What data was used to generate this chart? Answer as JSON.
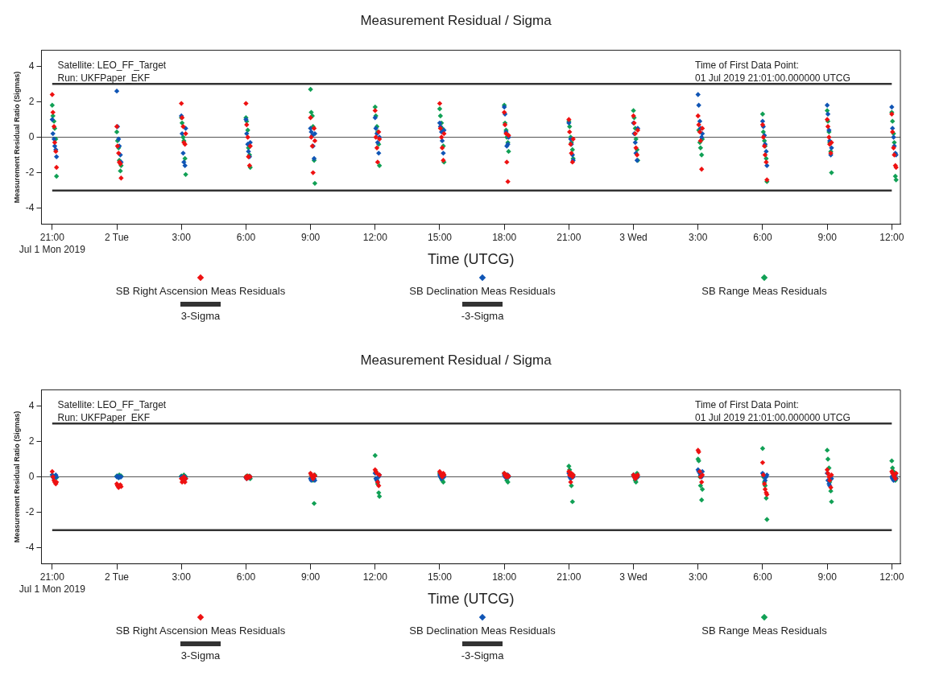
{
  "chart_data": [
    {
      "type": "scatter",
      "title": "Measurement Residual / Sigma",
      "xlabel": "Time (UTCG)",
      "ylabel": "Measurement Residual Ratio (Sigmas)",
      "annotations": [
        "Satellite: LEO_FF_Target",
        "Run: UKFPaper_EKF",
        "Time of First Data Point:",
        "01 Jul 2019 21:01:00.000000 UTCG"
      ],
      "x": [
        "2019-07-01T21:00",
        "2019-07-01T21:02",
        "2019-07-01T21:05",
        "2019-07-01T21:07",
        "2019-07-01T21:10",
        "2019-07-01T21:12",
        "2019-07-02T00:00",
        "2019-07-02T00:02",
        "2019-07-02T00:05",
        "2019-07-02T00:07",
        "2019-07-02T00:10",
        "2019-07-02T00:12",
        "2019-07-02T03:00",
        "2019-07-02T03:02",
        "2019-07-02T03:05",
        "2019-07-02T03:07",
        "2019-07-02T03:10",
        "2019-07-02T03:12",
        "2019-07-02T06:00",
        "2019-07-02T06:02",
        "2019-07-02T06:05",
        "2019-07-02T06:07",
        "2019-07-02T06:10",
        "2019-07-02T06:12",
        "2019-07-02T09:00",
        "2019-07-02T09:02",
        "2019-07-02T09:05",
        "2019-07-02T09:07",
        "2019-07-02T09:10",
        "2019-07-02T09:12",
        "2019-07-02T12:00",
        "2019-07-02T12:02",
        "2019-07-02T12:05",
        "2019-07-02T12:07",
        "2019-07-02T12:10",
        "2019-07-02T12:12",
        "2019-07-02T15:00",
        "2019-07-02T15:02",
        "2019-07-02T15:05",
        "2019-07-02T15:07",
        "2019-07-02T15:10",
        "2019-07-02T15:12",
        "2019-07-02T18:00",
        "2019-07-02T18:02",
        "2019-07-02T18:05",
        "2019-07-02T18:07",
        "2019-07-02T18:10",
        "2019-07-02T18:12",
        "2019-07-02T21:00",
        "2019-07-02T21:02",
        "2019-07-02T21:05",
        "2019-07-02T21:07",
        "2019-07-02T21:10",
        "2019-07-02T21:12",
        "2019-07-03T00:00",
        "2019-07-03T00:02",
        "2019-07-03T00:05",
        "2019-07-03T00:07",
        "2019-07-03T00:10",
        "2019-07-03T00:12",
        "2019-07-03T03:00",
        "2019-07-03T03:02",
        "2019-07-03T03:05",
        "2019-07-03T03:07",
        "2019-07-03T03:10",
        "2019-07-03T03:12",
        "2019-07-03T06:00",
        "2019-07-03T06:02",
        "2019-07-03T06:05",
        "2019-07-03T06:07",
        "2019-07-03T06:10",
        "2019-07-03T06:12",
        "2019-07-03T09:00",
        "2019-07-03T09:02",
        "2019-07-03T09:05",
        "2019-07-03T09:07",
        "2019-07-03T09:10",
        "2019-07-03T09:12",
        "2019-07-03T12:00",
        "2019-07-03T12:02",
        "2019-07-03T12:05",
        "2019-07-03T12:07",
        "2019-07-03T12:10",
        "2019-07-03T12:12"
      ],
      "series": [
        {
          "name": "SB Right Ascension Meas Residuals",
          "color": "#ee1111",
          "values": [
            2.4,
            1.4,
            0.6,
            -0.3,
            -0.8,
            -1.7,
            0.6,
            -0.5,
            -0.9,
            -1.4,
            -1.5,
            -2.3,
            1.9,
            1.1,
            0.6,
            -0.3,
            -0.4,
            0.2,
            1.9,
            0.7,
            0.0,
            -1.1,
            -1.6,
            -0.5,
            1.1,
            0.0,
            -0.5,
            -2.0,
            0.5,
            -0.2,
            1.5,
            0.0,
            -0.6,
            -1.4,
            0.3,
            -0.1,
            1.9,
            0.5,
            0.0,
            -0.6,
            -1.3,
            0.2,
            1.4,
            0.7,
            0.2,
            -1.4,
            -2.5,
            0.1,
            1.0,
            0.3,
            -0.4,
            -0.9,
            -1.4,
            -0.1,
            1.2,
            0.8,
            0.2,
            -0.6,
            -1.0,
            0.4,
            1.2,
            0.7,
            0.3,
            -0.2,
            -1.8,
            0.5,
            0.7,
            0.0,
            -0.5,
            -1.0,
            -1.4,
            -2.4,
            1.0,
            0.6,
            0.0,
            -0.4,
            -0.9,
            -0.3,
            1.3,
            0.3,
            -0.6,
            -1.0,
            -1.6,
            -1.7
          ]
        },
        {
          "name": "SB Declination Meas Residuals",
          "color": "#1055b5",
          "values": [
            1.0,
            0.2,
            -0.1,
            -0.5,
            -0.7,
            -1.1,
            2.6,
            0.6,
            -0.1,
            -0.5,
            -1.0,
            -1.4,
            1.2,
            0.2,
            -0.9,
            -1.4,
            -1.6,
            0.5,
            1.0,
            0.2,
            -0.4,
            -0.8,
            -1.1,
            -0.3,
            0.5,
            0.3,
            0.1,
            -0.5,
            -1.2,
            0.2,
            1.1,
            0.5,
            0.2,
            -0.3,
            -0.9,
            0.0,
            0.8,
            0.6,
            0.3,
            -0.2,
            -0.9,
            0.4,
            1.7,
            1.3,
            0.3,
            -0.5,
            -0.4,
            0.0,
            0.8,
            null,
            -0.1,
            -0.4,
            -1.0,
            -1.3,
            0.8,
            0.2,
            -0.3,
            -0.9,
            -1.3,
            0.5,
            2.4,
            1.8,
            0.9,
            0.5,
            0.0,
            0.2,
            0.9,
            0.6,
            0.1,
            -0.4,
            -0.8,
            -1.6,
            1.8,
            1.3,
            0.4,
            -0.2,
            -1.0,
            -0.6,
            1.7,
            0.5,
            0.0,
            -0.5,
            -0.9,
            -1.0
          ]
        },
        {
          "name": "SB Range Meas Residuals",
          "color": "#11a055",
          "values": [
            1.8,
            1.2,
            0.9,
            0.5,
            -0.1,
            -2.2,
            0.3,
            -0.2,
            -0.6,
            -1.3,
            -1.9,
            -1.6,
            1.1,
            0.8,
            0.0,
            -0.2,
            -1.2,
            -2.1,
            1.1,
            0.9,
            0.4,
            -0.6,
            -1.0,
            -1.7,
            2.7,
            1.4,
            1.2,
            0.6,
            -1.3,
            -2.6,
            1.7,
            1.2,
            0.6,
            0.3,
            -0.4,
            -1.6,
            1.6,
            1.2,
            0.8,
            0.5,
            -0.5,
            -1.4,
            1.8,
            0.8,
            0.4,
            0.0,
            -0.3,
            -0.8,
            0.9,
            0.6,
            0.0,
            -0.3,
            -0.7,
            -1.2,
            1.5,
            1.1,
            0.5,
            -0.1,
            -0.7,
            -1.3,
            null,
            0.4,
            -0.3,
            -0.6,
            -1.0,
            -0.1,
            1.3,
            0.3,
            -0.2,
            -0.5,
            -1.2,
            -2.5,
            1.5,
            0.9,
            0.3,
            -0.3,
            -0.8,
            -2.0,
            1.4,
            0.9,
            0.2,
            -0.3,
            -2.2,
            -2.4
          ]
        }
      ],
      "xlim": [
        "2019-07-01T20:30",
        "2019-07-03T12:24"
      ],
      "xticks": [
        {
          "value": "2019-07-01T21:00",
          "label": "21:00\nJul 1 Mon 2019"
        },
        {
          "value": "2019-07-02T00:00",
          "label": "2 Tue"
        },
        {
          "value": "2019-07-02T03:00",
          "label": "3:00"
        },
        {
          "value": "2019-07-02T06:00",
          "label": "6:00"
        },
        {
          "value": "2019-07-02T09:00",
          "label": "9:00"
        },
        {
          "value": "2019-07-02T12:00",
          "label": "12:00"
        },
        {
          "value": "2019-07-02T15:00",
          "label": "15:00"
        },
        {
          "value": "2019-07-02T18:00",
          "label": "18:00"
        },
        {
          "value": "2019-07-02T21:00",
          "label": "21:00"
        },
        {
          "value": "2019-07-03T00:00",
          "label": "3 Wed"
        },
        {
          "value": "2019-07-03T03:00",
          "label": "3:00"
        },
        {
          "value": "2019-07-03T06:00",
          "label": "6:00"
        },
        {
          "value": "2019-07-03T09:00",
          "label": "9:00"
        },
        {
          "value": "2019-07-03T12:00",
          "label": "12:00"
        }
      ],
      "ylim": [
        -4.9,
        4.9
      ],
      "yticks": [
        -4,
        -2,
        0,
        2,
        4
      ],
      "ref_lines": [
        {
          "axis": "y",
          "value": 3,
          "label": "3-Sigma",
          "color": "#333333"
        },
        {
          "axis": "y",
          "value": -3,
          "label": "-3-Sigma",
          "color": "#333333"
        },
        {
          "axis": "y",
          "value": 0,
          "color": "#555555"
        }
      ],
      "marker": "diamond",
      "legend": "bottom"
    },
    {
      "type": "scatter",
      "title": "Measurement Residual / Sigma",
      "xlabel": "Time (UTCG)",
      "ylabel": "Measurement Residual Ratio (Sigmas)",
      "annotations": [
        "Satellite: LEO_FF_Target",
        "Run: UKFPaper_EKF",
        "Time of First Data Point:",
        "01 Jul 2019 21:01:00.000000 UTCG"
      ],
      "x": [
        "2019-07-01T21:00",
        "2019-07-01T21:02",
        "2019-07-01T21:05",
        "2019-07-01T21:07",
        "2019-07-01T21:10",
        "2019-07-01T21:12",
        "2019-07-02T00:00",
        "2019-07-02T00:02",
        "2019-07-02T00:05",
        "2019-07-02T00:07",
        "2019-07-02T00:10",
        "2019-07-02T00:12",
        "2019-07-02T03:00",
        "2019-07-02T03:02",
        "2019-07-02T03:05",
        "2019-07-02T03:07",
        "2019-07-02T03:10",
        "2019-07-02T03:12",
        "2019-07-02T06:00",
        "2019-07-02T06:02",
        "2019-07-02T06:05",
        "2019-07-02T06:07",
        "2019-07-02T06:10",
        "2019-07-02T06:12",
        "2019-07-02T09:00",
        "2019-07-02T09:02",
        "2019-07-02T09:05",
        "2019-07-02T09:07",
        "2019-07-02T09:10",
        "2019-07-02T09:12",
        "2019-07-02T12:00",
        "2019-07-02T12:02",
        "2019-07-02T12:05",
        "2019-07-02T12:07",
        "2019-07-02T12:10",
        "2019-07-02T12:12",
        "2019-07-02T15:00",
        "2019-07-02T15:02",
        "2019-07-02T15:05",
        "2019-07-02T15:07",
        "2019-07-02T15:10",
        "2019-07-02T15:12",
        "2019-07-02T18:00",
        "2019-07-02T18:02",
        "2019-07-02T18:05",
        "2019-07-02T18:07",
        "2019-07-02T18:10",
        "2019-07-02T18:12",
        "2019-07-02T21:00",
        "2019-07-02T21:02",
        "2019-07-02T21:05",
        "2019-07-02T21:07",
        "2019-07-02T21:10",
        "2019-07-02T21:12",
        "2019-07-03T00:00",
        "2019-07-03T00:02",
        "2019-07-03T00:05",
        "2019-07-03T00:07",
        "2019-07-03T00:10",
        "2019-07-03T00:12",
        "2019-07-03T03:00",
        "2019-07-03T03:02",
        "2019-07-03T03:05",
        "2019-07-03T03:07",
        "2019-07-03T03:10",
        "2019-07-03T03:12",
        "2019-07-03T06:00",
        "2019-07-03T06:02",
        "2019-07-03T06:05",
        "2019-07-03T06:07",
        "2019-07-03T06:10",
        "2019-07-03T06:12",
        "2019-07-03T09:00",
        "2019-07-03T09:02",
        "2019-07-03T09:05",
        "2019-07-03T09:07",
        "2019-07-03T09:10",
        "2019-07-03T09:12",
        "2019-07-03T12:00",
        "2019-07-03T12:02",
        "2019-07-03T12:05",
        "2019-07-03T12:07",
        "2019-07-03T12:10",
        "2019-07-03T12:12"
      ],
      "series": [
        {
          "name": "SB Right Ascension Meas Residuals",
          "color": "#ee1111",
          "values": [
            0.3,
            0.0,
            -0.2,
            -0.3,
            -0.4,
            -0.3,
            -0.4,
            -0.5,
            -0.6,
            -0.5,
            -0.45,
            -0.55,
            -0.1,
            -0.3,
            -0.2,
            0.0,
            -0.3,
            -0.1,
            0.0,
            -0.1,
            0.05,
            -0.05,
            0.0,
            0.0,
            0.2,
            0.1,
            0.0,
            -0.1,
            0.1,
            0.05,
            0.4,
            0.3,
            0.2,
            -0.3,
            -0.5,
            0.1,
            0.3,
            0.2,
            0.1,
            0.0,
            0.2,
            0.1,
            0.2,
            0.1,
            0.0,
            0.1,
            0.0,
            0.05,
            0.3,
            0.1,
            -0.3,
            0.2,
            0.0,
            0.1,
            0.1,
            0.0,
            -0.1,
            0.05,
            0.0,
            0.1,
            1.5,
            1.4,
            0.3,
            0.0,
            -0.3,
            0.1,
            0.8,
            0.1,
            -0.4,
            -0.7,
            -0.9,
            -1.0,
            0.4,
            0.2,
            0.0,
            -0.2,
            -0.6,
            0.1,
            0.3,
            0.2,
            0.1,
            0.0,
            -0.1,
            0.2
          ]
        },
        {
          "name": "SB Declination Meas Residuals",
          "color": "#1055b5",
          "values": [
            0.1,
            0.0,
            -0.1,
            null,
            0.1,
            0.0,
            0.0,
            0.05,
            -0.05,
            0.0,
            0.0,
            0.0,
            0.0,
            null,
            null,
            0.0,
            0.0,
            -0.1,
            -0.05,
            -0.1,
            null,
            null,
            -0.05,
            0.0,
            -0.1,
            -0.2,
            null,
            null,
            -0.1,
            -0.2,
            0.2,
            -0.1,
            -0.2,
            -0.3,
            0.0,
            0.1,
            0.1,
            0.0,
            -0.1,
            null,
            null,
            0.0,
            0.1,
            0.0,
            -0.05,
            null,
            0.1,
            0.0,
            0.2,
            0.0,
            -0.1,
            null,
            0.0,
            0.0,
            0.1,
            0.0,
            -0.1,
            null,
            null,
            0.0,
            0.4,
            0.3,
            0.2,
            0.1,
            0.0,
            0.3,
            0.2,
            0.1,
            0.0,
            -0.2,
            0.0,
            0.1,
            0.2,
            -0.2,
            -0.4,
            -0.5,
            0.0,
            -0.1,
            0.0,
            -0.1,
            -0.2,
            null,
            0.1,
            -0.1
          ]
        },
        {
          "name": "SB Range Meas Residuals",
          "color": "#11a055",
          "values": [
            0.1,
            0.0,
            null,
            null,
            null,
            -0.05,
            0.05,
            null,
            -0.05,
            0.1,
            null,
            0.05,
            0.05,
            null,
            null,
            0.1,
            null,
            0.0,
            0.0,
            0.05,
            -0.05,
            null,
            0.05,
            -0.1,
            null,
            0.1,
            null,
            -0.2,
            -1.5,
            0.1,
            1.2,
            0.3,
            -0.2,
            -0.4,
            -0.9,
            -1.1,
            0.2,
            0.0,
            -0.1,
            -0.2,
            -0.3,
            0.1,
            0.2,
            null,
            null,
            -0.2,
            -0.3,
            0.0,
            0.6,
            0.4,
            null,
            -0.5,
            -1.4,
            0.1,
            0.1,
            0.0,
            -0.2,
            -0.3,
            0.2,
            0.0,
            1.0,
            0.9,
            0.0,
            -0.5,
            -1.3,
            -0.7,
            1.6,
            0.0,
            -0.3,
            -0.5,
            -1.2,
            -2.4,
            1.5,
            1.0,
            0.5,
            -0.3,
            -0.8,
            -1.4,
            0.9,
            0.5,
            0.3,
            null,
            -0.2,
            -0.1
          ]
        }
      ],
      "xlim": [
        "2019-07-01T20:30",
        "2019-07-03T12:24"
      ],
      "xticks": [
        {
          "value": "2019-07-01T21:00",
          "label": "21:00\nJul 1 Mon 2019"
        },
        {
          "value": "2019-07-02T00:00",
          "label": "2 Tue"
        },
        {
          "value": "2019-07-02T03:00",
          "label": "3:00"
        },
        {
          "value": "2019-07-02T06:00",
          "label": "6:00"
        },
        {
          "value": "2019-07-02T09:00",
          "label": "9:00"
        },
        {
          "value": "2019-07-02T12:00",
          "label": "12:00"
        },
        {
          "value": "2019-07-02T15:00",
          "label": "15:00"
        },
        {
          "value": "2019-07-02T18:00",
          "label": "18:00"
        },
        {
          "value": "2019-07-02T21:00",
          "label": "21:00"
        },
        {
          "value": "2019-07-03T00:00",
          "label": "3 Wed"
        },
        {
          "value": "2019-07-03T03:00",
          "label": "3:00"
        },
        {
          "value": "2019-07-03T06:00",
          "label": "6:00"
        },
        {
          "value": "2019-07-03T09:00",
          "label": "9:00"
        },
        {
          "value": "2019-07-03T12:00",
          "label": "12:00"
        }
      ],
      "ylim": [
        -4.9,
        4.9
      ],
      "yticks": [
        -4,
        -2,
        0,
        2,
        4
      ],
      "ref_lines": [
        {
          "axis": "y",
          "value": 3,
          "label": "3-Sigma",
          "color": "#333333"
        },
        {
          "axis": "y",
          "value": -3,
          "label": "-3-Sigma",
          "color": "#333333"
        },
        {
          "axis": "y",
          "value": 0,
          "color": "#555555"
        }
      ],
      "marker": "diamond",
      "legend": "bottom"
    }
  ]
}
